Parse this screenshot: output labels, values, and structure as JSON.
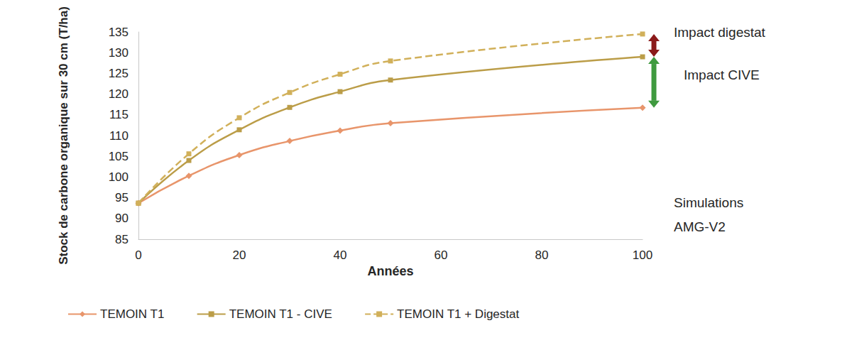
{
  "chart_data": {
    "type": "line",
    "y_label": "Stock de carbone organique sur 30 cm (T/ha)",
    "x_label": "Années",
    "x": [
      0,
      10,
      20,
      30,
      40,
      50,
      100
    ],
    "series": [
      {
        "name": "TEMOIN T1",
        "color": "#e8956b",
        "marker": "diamond",
        "line_style": "solid",
        "values": [
          93.7,
          100.3,
          105.3,
          108.7,
          111.2,
          113.0,
          116.7
        ]
      },
      {
        "name": "TEMOIN T1 - CIVE",
        "color": "#bb9d48",
        "marker": "square",
        "line_style": "solid",
        "values": [
          93.7,
          104.0,
          111.4,
          116.8,
          120.6,
          123.4,
          129.0
        ]
      },
      {
        "name": "TEMOIN T1 + Digestat",
        "color": "#d1b05a",
        "marker": "square",
        "line_style": "dashed",
        "values": [
          93.7,
          105.6,
          114.3,
          120.4,
          124.8,
          128.0,
          134.5
        ]
      }
    ],
    "xlim": [
      0,
      100
    ],
    "xticks": [
      0,
      20,
      40,
      60,
      80,
      100
    ],
    "ylim": [
      85,
      135
    ],
    "yticks": [
      85,
      90,
      95,
      100,
      105,
      110,
      115,
      120,
      125,
      130,
      135
    ],
    "grid": false,
    "legend": "bottom",
    "annotations": [
      "Impact digestat",
      "Impact CIVE",
      "Simulations AMG-V2"
    ]
  }
}
